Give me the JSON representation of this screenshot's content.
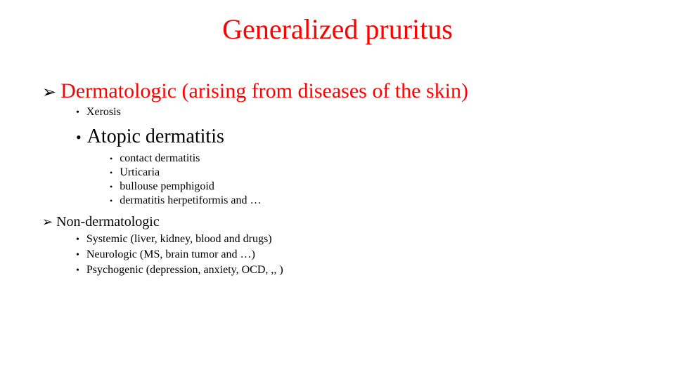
{
  "title": {
    "text": "Generalized pruritus",
    "color": "#ff0000",
    "fontsize": 40
  },
  "sections": [
    {
      "label": "Dermatologic (arising from diseases of the skin)",
      "label_color": "#ff0000",
      "label_fontsize": 30,
      "items": [
        {
          "text": "Xerosis",
          "emph": false
        },
        {
          "text": "Atopic dermatitis",
          "emph": true
        },
        {
          "text": "contact dermatitis",
          "emph": false
        },
        {
          "text": "Urticaria",
          "emph": false
        },
        {
          "text": "bullouse pemphigoid",
          "emph": false
        },
        {
          "text": "dermatitis herpetiformis and …",
          "emph": false
        }
      ]
    },
    {
      "label": "Non-dermatologic",
      "label_color": "#000000",
      "label_fontsize": 20,
      "items": [
        {
          "text": "Systemic (liver, kidney, blood and drugs)",
          "emph": false
        },
        {
          "text": "Neurologic (MS, brain tumor and …)",
          "emph": false
        },
        {
          "text": "Psychogenic (depression, anxiety, OCD, ,, )",
          "emph": false
        }
      ]
    }
  ],
  "colors": {
    "background": "#ffffff",
    "text": "#000000",
    "accent": "#ff0000"
  },
  "typography": {
    "family": "Times New Roman",
    "title_weight": "normal"
  }
}
